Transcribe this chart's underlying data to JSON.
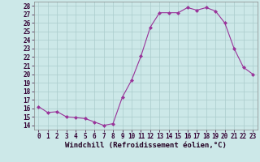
{
  "x": [
    0,
    1,
    2,
    3,
    4,
    5,
    6,
    7,
    8,
    9,
    10,
    11,
    12,
    13,
    14,
    15,
    16,
    17,
    18,
    19,
    20,
    21,
    22,
    23
  ],
  "y": [
    16.2,
    15.5,
    15.6,
    15.0,
    14.9,
    14.8,
    14.4,
    14.0,
    14.2,
    17.3,
    19.3,
    22.1,
    25.5,
    27.2,
    27.2,
    27.2,
    27.8,
    27.5,
    27.8,
    27.4,
    26.0,
    23.0,
    20.8,
    20.0
  ],
  "line_color": "#993399",
  "marker": "D",
  "marker_size": 2,
  "bg_color": "#cce8e8",
  "grid_color": "#aacccc",
  "xlabel": "Windchill (Refroidissement éolien,°C)",
  "ylim": [
    13.5,
    28.5
  ],
  "xlim": [
    -0.5,
    23.5
  ],
  "yticks": [
    14,
    15,
    16,
    17,
    18,
    19,
    20,
    21,
    22,
    23,
    24,
    25,
    26,
    27,
    28
  ],
  "xticks": [
    0,
    1,
    2,
    3,
    4,
    5,
    6,
    7,
    8,
    9,
    10,
    11,
    12,
    13,
    14,
    15,
    16,
    17,
    18,
    19,
    20,
    21,
    22,
    23
  ],
  "tick_label_fontsize": 5.5,
  "xlabel_fontsize": 6.5,
  "line_width": 0.8
}
